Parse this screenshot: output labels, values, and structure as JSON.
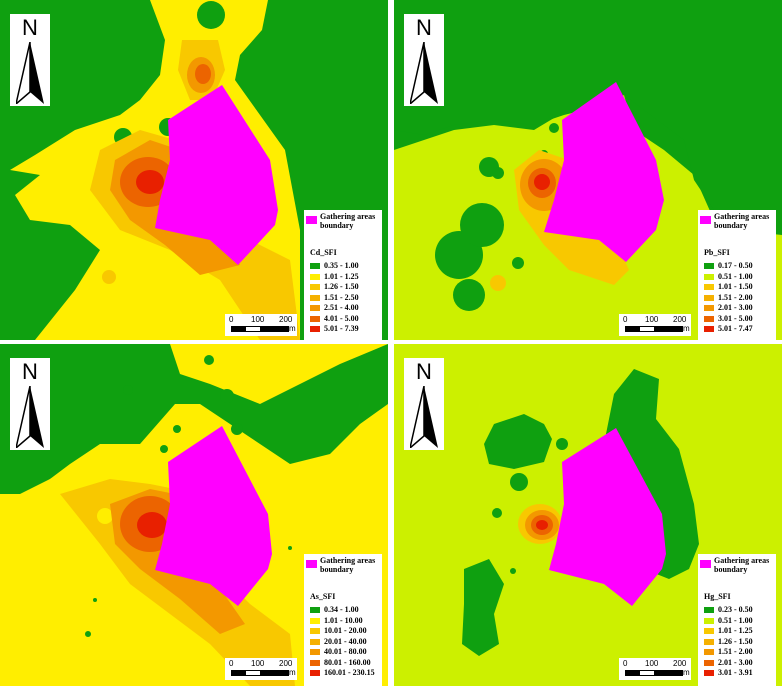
{
  "colors": {
    "green": "#0fa010",
    "lime": "#ccf000",
    "yellow": "#ffee00",
    "light_orange": "#f8c800",
    "orange": "#f39800",
    "dark_orange": "#ec6400",
    "red": "#e82000",
    "boundary": "#ff00ff"
  },
  "north_label": "N",
  "boundary_label": "Gathering areas boundary",
  "scale": {
    "ticks": [
      "0",
      "100",
      "200"
    ],
    "unit": "m"
  },
  "panels": [
    {
      "id": "cd",
      "title": "Cd_SFI",
      "classes": [
        {
          "range": "0.35 - 1.00",
          "color": "#0fa010"
        },
        {
          "range": "1.01 - 1.25",
          "color": "#ffee00"
        },
        {
          "range": "1.26 - 1.50",
          "color": "#f8c800"
        },
        {
          "range": "1.51 - 2.50",
          "color": "#f5b000"
        },
        {
          "range": "2.51 - 4.00",
          "color": "#f39800"
        },
        {
          "range": "4.01 - 5.00",
          "color": "#ec6400"
        },
        {
          "range": "5.01 - 7.39",
          "color": "#e82000"
        }
      ]
    },
    {
      "id": "pb",
      "title": "Pb_SFI",
      "classes": [
        {
          "range": "0.17 - 0.50",
          "color": "#0fa010"
        },
        {
          "range": "0.51 - 1.00",
          "color": "#ccf000"
        },
        {
          "range": "1.01 - 1.50",
          "color": "#f8c800"
        },
        {
          "range": "1.51 - 2.00",
          "color": "#f5b000"
        },
        {
          "range": "2.01 - 3.00",
          "color": "#f39800"
        },
        {
          "range": "3.01 - 5.00",
          "color": "#ec6400"
        },
        {
          "range": "5.01 - 7.47",
          "color": "#e82000"
        }
      ]
    },
    {
      "id": "as",
      "title": "As_SFI",
      "classes": [
        {
          "range": "0.34 - 1.00",
          "color": "#0fa010"
        },
        {
          "range": "1.01 - 10.00",
          "color": "#ffee00"
        },
        {
          "range": "10.01 - 20.00",
          "color": "#f8c800"
        },
        {
          "range": "20.01 - 40.00",
          "color": "#f5b000"
        },
        {
          "range": "40.01 - 80.00",
          "color": "#f39800"
        },
        {
          "range": "80.01 - 160.00",
          "color": "#ec6400"
        },
        {
          "range": "160.01 - 230.15",
          "color": "#e82000"
        }
      ]
    },
    {
      "id": "hg",
      "title": "Hg_SFI",
      "classes": [
        {
          "range": "0.23 - 0.50",
          "color": "#0fa010"
        },
        {
          "range": "0.51 - 1.00",
          "color": "#ccf000"
        },
        {
          "range": "1.01 - 1.25",
          "color": "#f8c800"
        },
        {
          "range": "1.26 - 1.50",
          "color": "#f5b000"
        },
        {
          "range": "1.51 - 2.00",
          "color": "#f39800"
        },
        {
          "range": "2.01 - 3.00",
          "color": "#ec6400"
        },
        {
          "range": "3.01 - 3.91",
          "color": "#e82000"
        }
      ]
    }
  ]
}
